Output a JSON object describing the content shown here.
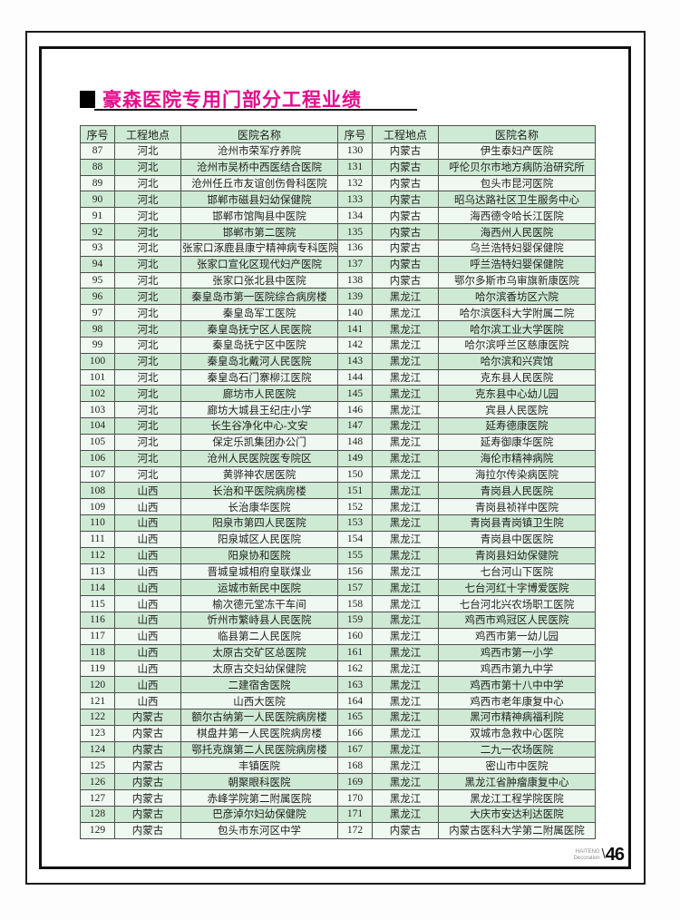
{
  "page": {
    "title": "豪森医院专用门部分工程业绩",
    "accent_color": "#e60c8a"
  },
  "table": {
    "headers": {
      "no": "序号",
      "location": "工程地点",
      "name": "医院名称"
    },
    "row_colors": {
      "header": "#cfead4",
      "even": "#f0f9f1",
      "odd": "#cfead4"
    },
    "left_rows": [
      [
        "87",
        "河北",
        "沧州市荣军疗养院"
      ],
      [
        "88",
        "河北",
        "沧州市吴桥中西医结合医院"
      ],
      [
        "89",
        "河北",
        "沧州任丘市友谊创伤骨科医院"
      ],
      [
        "90",
        "河北",
        "邯郸市磁县妇幼保健院"
      ],
      [
        "91",
        "河北",
        "邯郸市馆陶县中医院"
      ],
      [
        "92",
        "河北",
        "邯郸市第二医院"
      ],
      [
        "93",
        "河北",
        "张家口涿鹿县康宁精神病专科医院"
      ],
      [
        "94",
        "河北",
        "张家口宣化区现代妇产医院"
      ],
      [
        "95",
        "河北",
        "张家口张北县中医院"
      ],
      [
        "96",
        "河北",
        "秦皇岛市第一医院综合病房楼"
      ],
      [
        "97",
        "河北",
        "秦皇岛军工医院"
      ],
      [
        "98",
        "河北",
        "秦皇岛抚宁区人民医院"
      ],
      [
        "99",
        "河北",
        "秦皇岛抚宁区中医院"
      ],
      [
        "100",
        "河北",
        "秦皇岛北戴河人民医院"
      ],
      [
        "101",
        "河北",
        "秦皇岛石门寨柳江医院"
      ],
      [
        "102",
        "河北",
        "廊坊市人民医院"
      ],
      [
        "103",
        "河北",
        "廊坊大城县王纪庄小学"
      ],
      [
        "104",
        "河北",
        "长生谷净化中心-文安"
      ],
      [
        "105",
        "河北",
        "保定乐凯集团办公门"
      ],
      [
        "106",
        "河北",
        "沧州人民医院医专院区"
      ],
      [
        "107",
        "河北",
        "黄骅神农居医院"
      ],
      [
        "108",
        "山西",
        "长治和平医院病房楼"
      ],
      [
        "109",
        "山西",
        "长治康华医院"
      ],
      [
        "110",
        "山西",
        "阳泉市第四人民医院"
      ],
      [
        "111",
        "山西",
        "阳泉城区人民医院"
      ],
      [
        "112",
        "山西",
        "阳泉协和医院"
      ],
      [
        "113",
        "山西",
        "晋城皇城相府皇联煤业"
      ],
      [
        "114",
        "山西",
        "运城市新民中医院"
      ],
      [
        "115",
        "山西",
        "榆次德元堂冻干车间"
      ],
      [
        "116",
        "山西",
        "忻州市繁峙县人民医院"
      ],
      [
        "117",
        "山西",
        "临县第二人民医院"
      ],
      [
        "118",
        "山西",
        "太原古交矿区总医院"
      ],
      [
        "119",
        "山西",
        "太原古交妇幼保健院"
      ],
      [
        "120",
        "山西",
        "二建宿舍医院"
      ],
      [
        "121",
        "山西",
        "山西大医院"
      ],
      [
        "122",
        "内蒙古",
        "额尔古纳第一人民医院病房楼"
      ],
      [
        "123",
        "内蒙古",
        "棋盘井第一人民医院病房楼"
      ],
      [
        "124",
        "内蒙古",
        "鄂托克旗第二人民医院病房楼"
      ],
      [
        "125",
        "内蒙古",
        "丰镇医院"
      ],
      [
        "126",
        "内蒙古",
        "朝聚眼科医院"
      ],
      [
        "127",
        "内蒙古",
        "赤峰学院第二附属医院"
      ],
      [
        "128",
        "内蒙古",
        "巴彦淖尔妇幼保健院"
      ],
      [
        "129",
        "内蒙古",
        "包头市东河区中学"
      ]
    ],
    "right_rows": [
      [
        "130",
        "内蒙古",
        "伊生泰妇产医院"
      ],
      [
        "131",
        "内蒙古",
        "呼伦贝尔市地方病防治研究所"
      ],
      [
        "132",
        "内蒙古",
        "包头市昆河医院"
      ],
      [
        "133",
        "内蒙古",
        "昭乌达路社区卫生服务中心"
      ],
      [
        "134",
        "内蒙古",
        "海西德令哈长江医院"
      ],
      [
        "135",
        "内蒙古",
        "海西州人民医院"
      ],
      [
        "136",
        "内蒙古",
        "乌兰浩特妇婴保健院"
      ],
      [
        "137",
        "内蒙古",
        "呼兰浩特妇婴保健院"
      ],
      [
        "138",
        "内蒙古",
        "鄂尔多斯市乌审旗新康医院"
      ],
      [
        "139",
        "黑龙江",
        "哈尔滨香坊区六院"
      ],
      [
        "140",
        "黑龙江",
        "哈尔滨医科大学附属二院"
      ],
      [
        "141",
        "黑龙江",
        "哈尔滨工业大学医院"
      ],
      [
        "142",
        "黑龙江",
        "哈尔滨呼兰区慈康医院"
      ],
      [
        "143",
        "黑龙江",
        "哈尔滨和兴宾馆"
      ],
      [
        "144",
        "黑龙江",
        "克东县人民医院"
      ],
      [
        "145",
        "黑龙江",
        "克东县中心幼儿园"
      ],
      [
        "146",
        "黑龙江",
        "宾县人民医院"
      ],
      [
        "147",
        "黑龙江",
        "延寿德康医院"
      ],
      [
        "148",
        "黑龙江",
        "延寿御康华医院"
      ],
      [
        "149",
        "黑龙江",
        "海伦市精神病院"
      ],
      [
        "150",
        "黑龙江",
        "海拉尔传染病医院"
      ],
      [
        "151",
        "黑龙江",
        "青岗县人民医院"
      ],
      [
        "152",
        "黑龙江",
        "青岗县祯祥中医院"
      ],
      [
        "153",
        "黑龙江",
        "青岗县青岗镇卫生院"
      ],
      [
        "154",
        "黑龙江",
        "青岗县中医医院"
      ],
      [
        "155",
        "黑龙江",
        "青岗县妇幼保健院"
      ],
      [
        "156",
        "黑龙江",
        "七台河山下医院"
      ],
      [
        "157",
        "黑龙江",
        "七台河红十字博爱医院"
      ],
      [
        "158",
        "黑龙江",
        "七台河北兴农场职工医院"
      ],
      [
        "159",
        "黑龙江",
        "鸡西市鸡冠区人民医院"
      ],
      [
        "160",
        "黑龙江",
        "鸡西市第一幼儿园"
      ],
      [
        "161",
        "黑龙江",
        "鸡西市第一小学"
      ],
      [
        "162",
        "黑龙江",
        "鸡西市第九中学"
      ],
      [
        "163",
        "黑龙江",
        "鸡西市第十八中中学"
      ],
      [
        "164",
        "黑龙江",
        "鸡西市老年康复中心"
      ],
      [
        "165",
        "黑龙江",
        "黑河市精神病福利院"
      ],
      [
        "166",
        "黑龙江",
        "双城市急救中心医院"
      ],
      [
        "167",
        "黑龙江",
        "二九一农场医院"
      ],
      [
        "168",
        "黑龙江",
        "密山市中医院"
      ],
      [
        "169",
        "黑龙江",
        "黑龙江省肿瘤康复中心"
      ],
      [
        "170",
        "黑龙江",
        "黑龙江工程学院医院"
      ],
      [
        "171",
        "黑龙江",
        "大庆市安达利达医院"
      ],
      [
        "172",
        "内蒙古",
        "内蒙古医科大学第二附属医院"
      ]
    ]
  },
  "footer": {
    "brand_line1": "HAITENG",
    "brand_line2": "Decoration",
    "separator": "\\",
    "page_number": "46"
  }
}
